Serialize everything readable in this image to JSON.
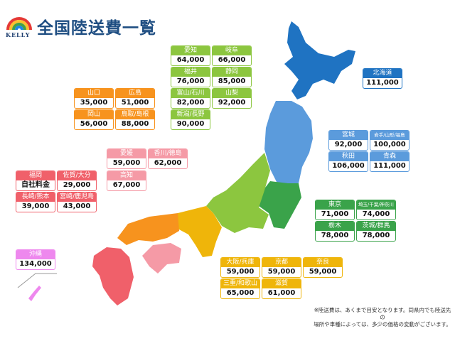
{
  "header": {
    "logo_text": "KELLY",
    "title": "全国陸送費一覧"
  },
  "colors": {
    "hokkaido": "#1f73c2",
    "tohoku": "#5b9bdc",
    "kanto": "#3aa34a",
    "chubu": "#8cc63f",
    "kinki": "#efb50a",
    "chugoku": "#f7931e",
    "shikoku": "#f59aa6",
    "kyushu": "#f0606a",
    "okinawa": "#ee88ee"
  },
  "regions": {
    "chubu": [
      {
        "name": "愛知",
        "price": "64,000"
      },
      {
        "name": "岐阜",
        "price": "66,000"
      },
      {
        "name": "福井",
        "price": "76,000"
      },
      {
        "name": "静岡",
        "price": "85,000"
      },
      {
        "name": "富山/石川",
        "price": "82,000"
      },
      {
        "name": "山梨",
        "price": "92,000"
      },
      {
        "name": "新潟/長野",
        "price": "90,000"
      }
    ],
    "chugoku": [
      {
        "name": "山口",
        "price": "35,000"
      },
      {
        "name": "広島",
        "price": "51,000"
      },
      {
        "name": "岡山",
        "price": "56,000"
      },
      {
        "name": "鳥取/島根",
        "price": "88,000"
      }
    ],
    "hokkaido": [
      {
        "name": "北海道",
        "price": "111,000"
      }
    ],
    "tohoku": [
      {
        "name": "宮城",
        "price": "92,000"
      },
      {
        "name": "岩手/山形/福島",
        "price": "100,000"
      },
      {
        "name": "秋田",
        "price": "106,000"
      },
      {
        "name": "青森",
        "price": "111,000"
      }
    ],
    "shikoku": [
      {
        "name": "愛媛",
        "price": "59,000"
      },
      {
        "name": "香川/徳島",
        "price": "62,000"
      },
      {
        "name": "高知",
        "price": "67,000"
      }
    ],
    "kyushu": [
      {
        "name": "福岡",
        "price": "自社料金"
      },
      {
        "name": "佐賀/大分",
        "price": "29,000"
      },
      {
        "name": "長崎/熊本",
        "price": "39,000"
      },
      {
        "name": "宮崎/鹿児島",
        "price": "43,000"
      }
    ],
    "okinawa": [
      {
        "name": "沖縄",
        "price": "134,000"
      }
    ],
    "kanto": [
      {
        "name": "東京",
        "price": "71,000"
      },
      {
        "name": "埼玉/千葉/神奈川",
        "price": "74,000"
      },
      {
        "name": "栃木",
        "price": "78,000"
      },
      {
        "name": "茨城/群馬",
        "price": "78,000"
      }
    ],
    "kinki": [
      {
        "name": "大阪/兵庫",
        "price": "59,000"
      },
      {
        "name": "京都",
        "price": "59,000"
      },
      {
        "name": "奈良",
        "price": "59,000"
      },
      {
        "name": "三重/和歌山",
        "price": "65,000"
      },
      {
        "name": "滋賀",
        "price": "61,000"
      }
    ]
  },
  "note": {
    "line1": "※陸送費は、あくまで目安となります。同県内でも陸送先の",
    "line2": "場所や車種によっては、多少の価格の変動がございます。"
  }
}
